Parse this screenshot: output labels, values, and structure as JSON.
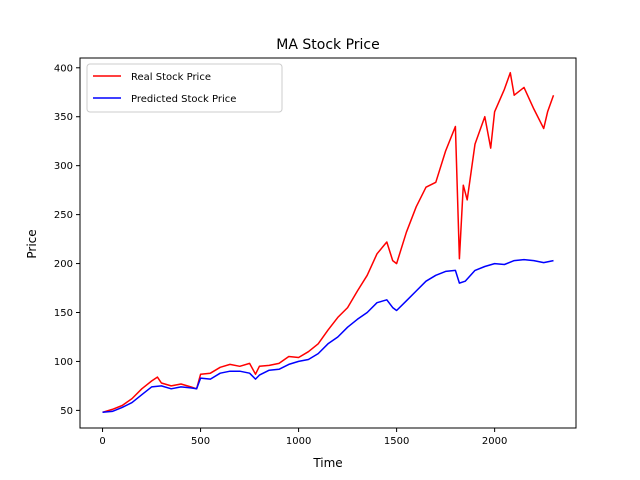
{
  "chart_data": {
    "type": "line",
    "title": "MA Stock Price",
    "xlabel": "Time",
    "ylabel": "Price",
    "xlim": [
      -115,
      2415
    ],
    "ylim": [
      32,
      410
    ],
    "xticks": [
      0,
      500,
      1000,
      1500,
      2000
    ],
    "yticks": [
      50,
      100,
      150,
      200,
      250,
      300,
      350,
      400
    ],
    "grid": false,
    "legend": "top-left",
    "series": [
      {
        "name": "Real Stock Price",
        "color": "#ff0000",
        "x": [
          0,
          50,
          100,
          150,
          200,
          250,
          280,
          300,
          350,
          400,
          450,
          480,
          500,
          550,
          600,
          650,
          700,
          750,
          780,
          800,
          850,
          900,
          950,
          1000,
          1050,
          1100,
          1150,
          1200,
          1250,
          1300,
          1350,
          1400,
          1450,
          1480,
          1500,
          1550,
          1600,
          1650,
          1700,
          1750,
          1800,
          1820,
          1840,
          1860,
          1900,
          1950,
          1980,
          2000,
          2050,
          2080,
          2100,
          2150,
          2200,
          2250,
          2270,
          2300
        ],
        "y": [
          48,
          51,
          55,
          62,
          72,
          80,
          84,
          78,
          75,
          77,
          74,
          72,
          87,
          88,
          94,
          97,
          95,
          98,
          87,
          95,
          96,
          98,
          105,
          104,
          110,
          118,
          132,
          145,
          155,
          172,
          188,
          210,
          222,
          203,
          200,
          232,
          258,
          278,
          283,
          315,
          340,
          205,
          280,
          265,
          322,
          350,
          318,
          355,
          378,
          395,
          372,
          380,
          358,
          338,
          355,
          372
        ]
      },
      {
        "name": "Predicted Stock Price",
        "color": "#0000ff",
        "x": [
          0,
          50,
          100,
          150,
          200,
          250,
          300,
          350,
          400,
          450,
          480,
          500,
          550,
          600,
          650,
          700,
          750,
          780,
          800,
          850,
          900,
          950,
          1000,
          1050,
          1100,
          1150,
          1200,
          1250,
          1300,
          1350,
          1400,
          1450,
          1480,
          1500,
          1550,
          1600,
          1650,
          1700,
          1750,
          1800,
          1820,
          1850,
          1900,
          1950,
          2000,
          2050,
          2100,
          2150,
          2200,
          2250,
          2300
        ],
        "y": [
          48,
          49,
          53,
          58,
          66,
          74,
          75,
          72,
          74,
          73,
          72,
          83,
          82,
          88,
          90,
          90,
          88,
          82,
          86,
          91,
          92,
          97,
          100,
          102,
          108,
          118,
          125,
          135,
          143,
          150,
          160,
          163,
          155,
          152,
          162,
          172,
          182,
          188,
          192,
          193,
          180,
          182,
          193,
          197,
          200,
          199,
          203,
          204,
          203,
          201,
          203
        ]
      }
    ]
  }
}
